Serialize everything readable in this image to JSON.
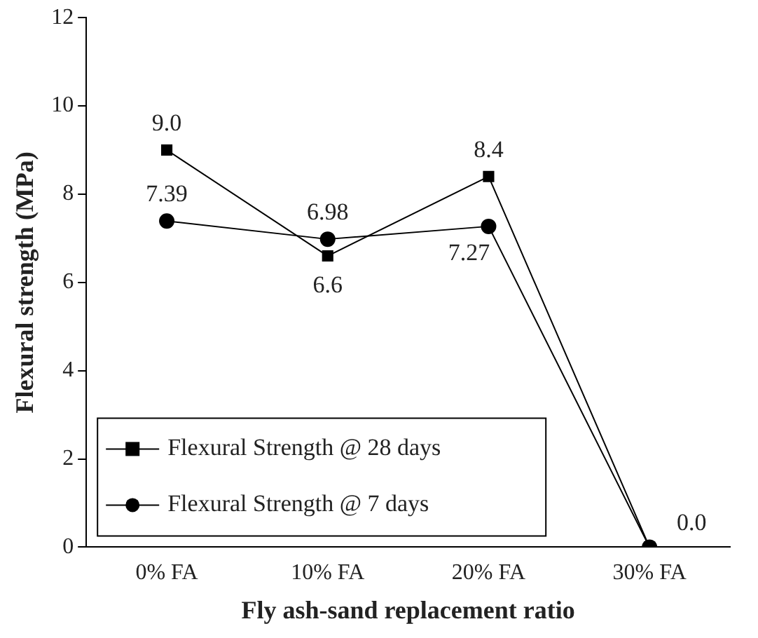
{
  "chart_data": {
    "type": "line",
    "xlabel": "Fly ash-sand replacement ratio",
    "ylabel": "Flexural strength (MPa)",
    "categories": [
      "0% FA",
      "10% FA",
      "20% FA",
      "30% FA"
    ],
    "series": [
      {
        "name": "Flexural Strength @ 28 days",
        "color": "#000000",
        "marker": "square",
        "values": [
          9.0,
          6.6,
          8.4,
          0.0
        ],
        "value_labels": [
          "9.0",
          "6.6",
          "8.4",
          "0.0"
        ]
      },
      {
        "name": "Flexural Strength @ 7 days",
        "color": "#000000",
        "marker": "circle",
        "values": [
          7.39,
          6.98,
          7.27,
          0
        ],
        "value_labels": [
          "7.39",
          "6.98",
          "7.27",
          null
        ]
      }
    ],
    "ylim": [
      0,
      12
    ],
    "yticks": [
      0,
      2,
      4,
      6,
      8,
      10,
      12
    ],
    "grid": false,
    "legend": "bottom left",
    "line_style": "solid"
  }
}
